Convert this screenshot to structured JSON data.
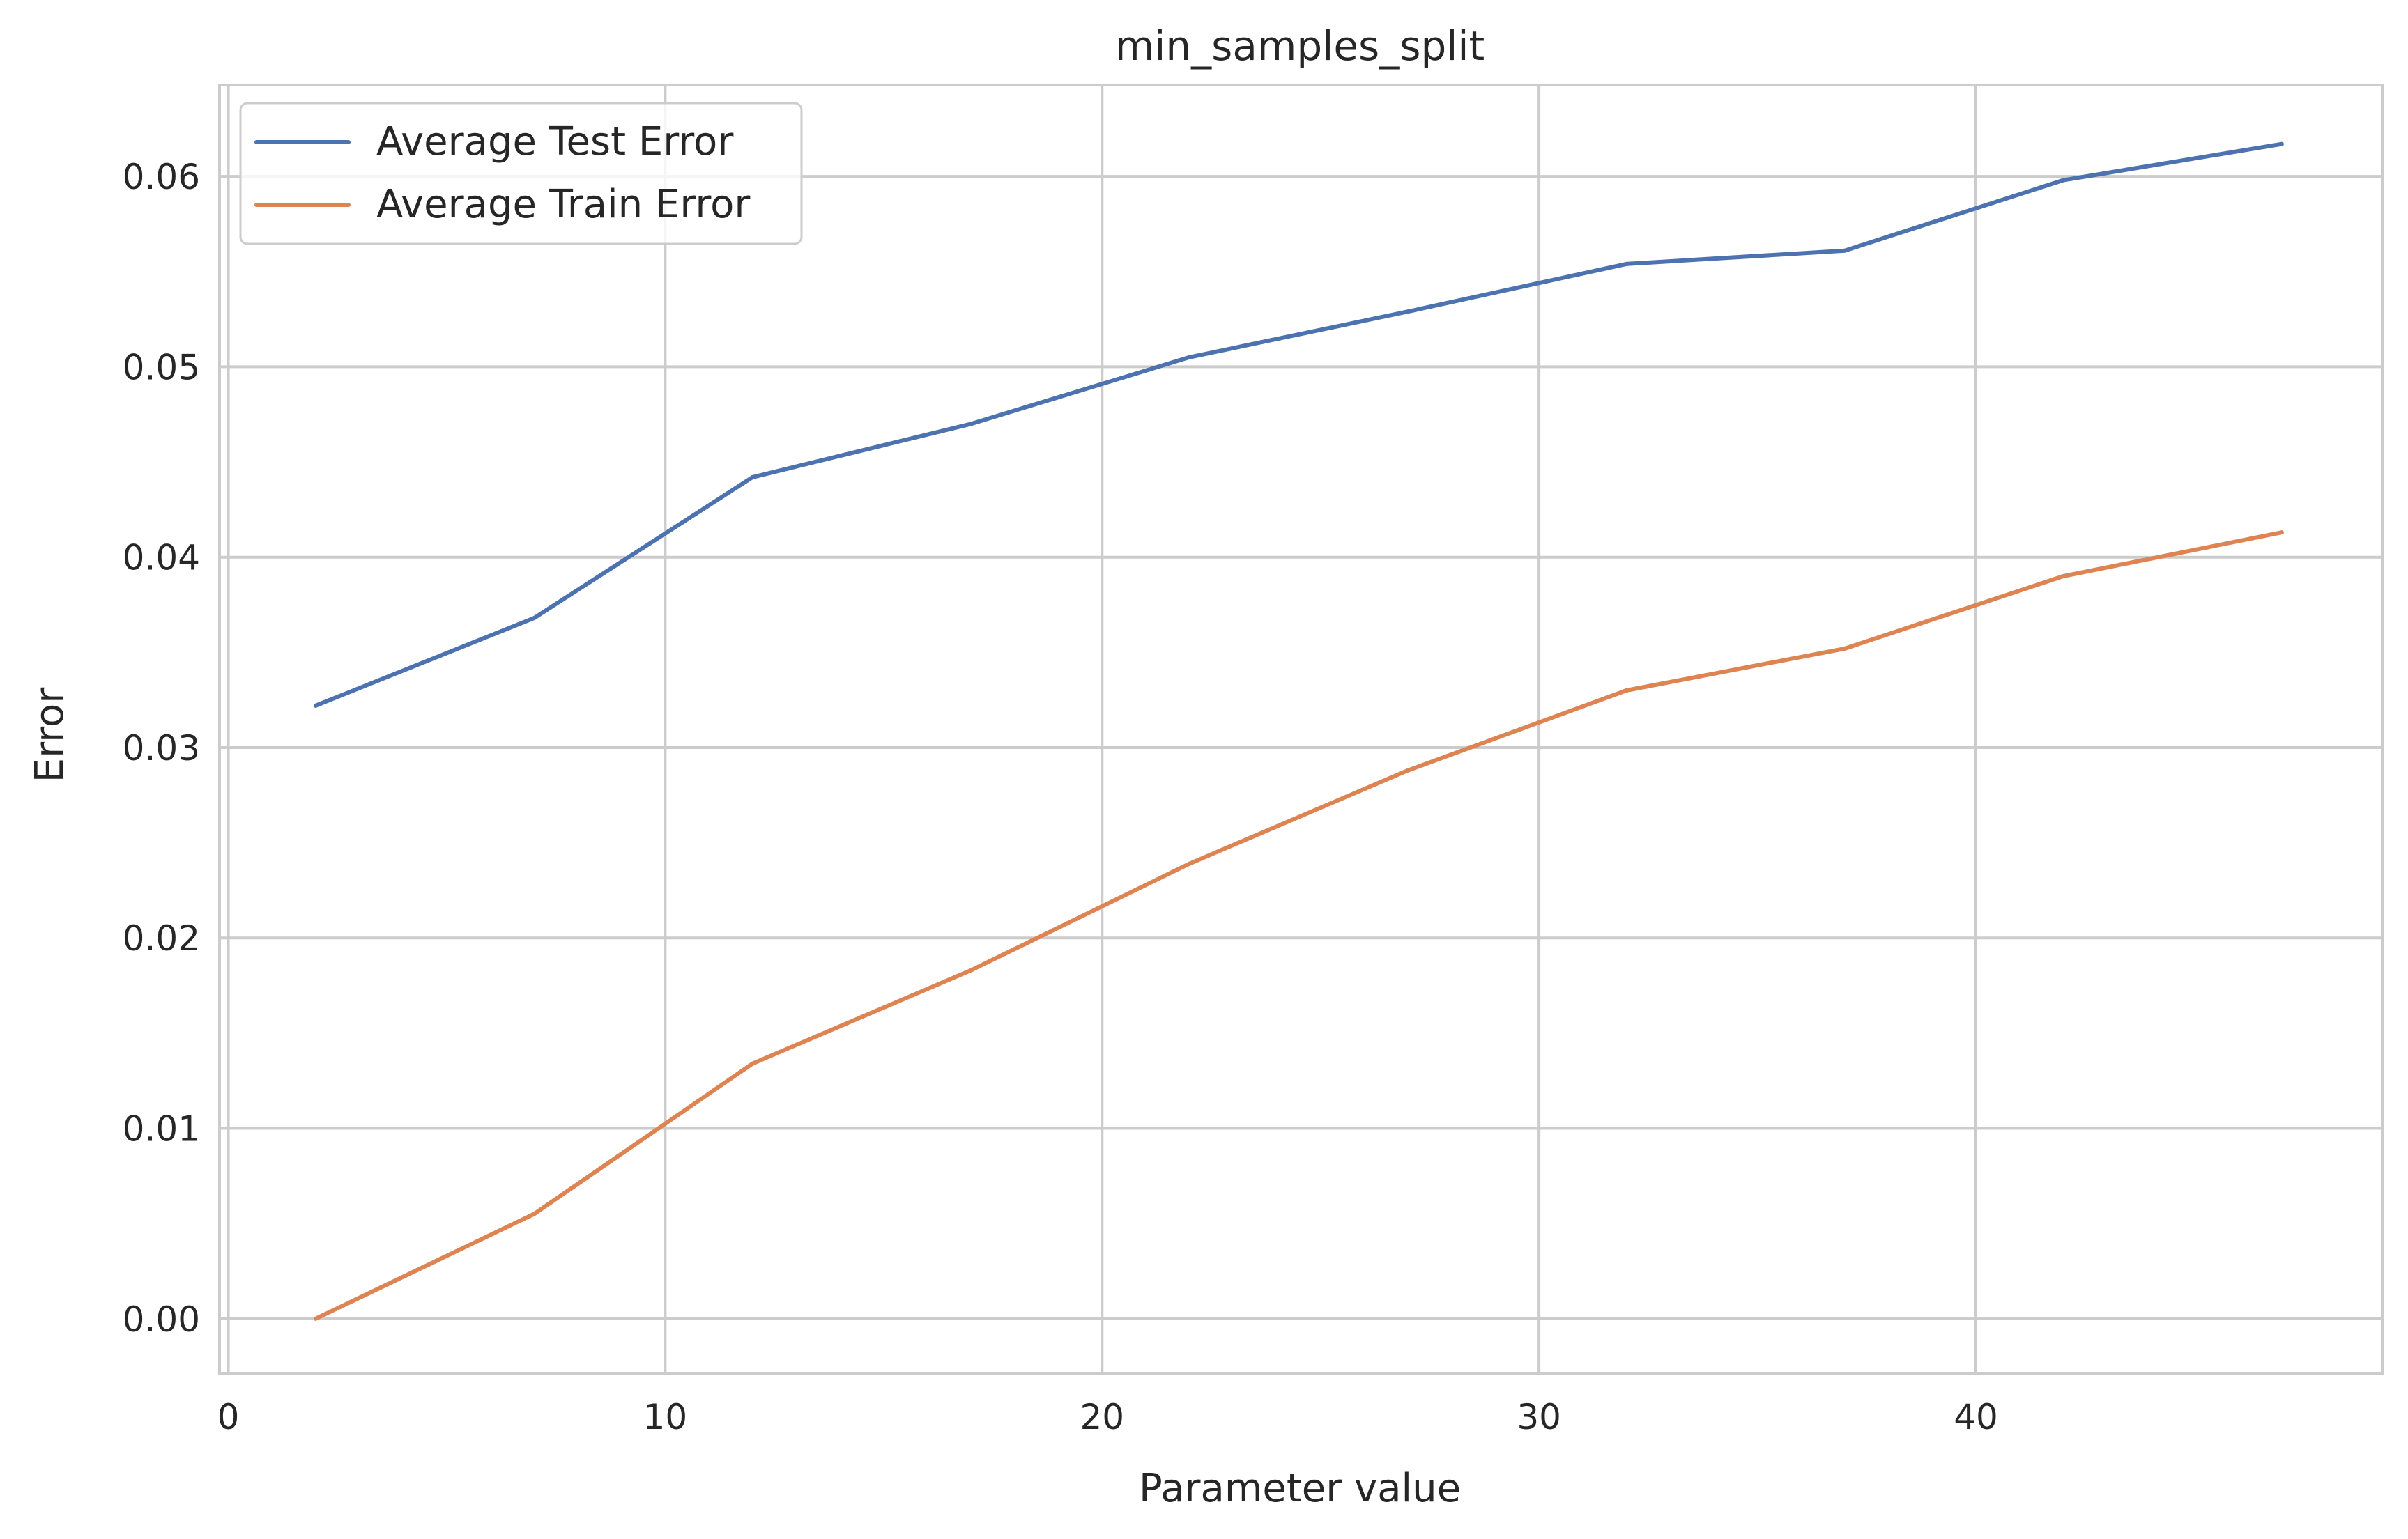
{
  "chart_data": {
    "type": "line",
    "title": "min_samples_split",
    "xlabel": "Parameter value",
    "ylabel": "Error",
    "xlim": [
      -0.2,
      49.3
    ],
    "ylim": [
      -0.0029,
      0.0648
    ],
    "x_ticks": [
      0,
      10,
      20,
      30,
      40
    ],
    "y_ticks": [
      0.0,
      0.01,
      0.02,
      0.03,
      0.04,
      0.05,
      0.06
    ],
    "x_tick_labels": [
      "0",
      "10",
      "20",
      "30",
      "40"
    ],
    "y_tick_labels": [
      "0.00",
      "0.01",
      "0.02",
      "0.03",
      "0.04",
      "0.05",
      "0.06"
    ],
    "grid": true,
    "legend_position": "top-left",
    "x": [
      2,
      7,
      12,
      17,
      22,
      27,
      32,
      37,
      42,
      47
    ],
    "series": [
      {
        "name": "Average Test Error",
        "color": "#4c72b0",
        "values": [
          0.0322,
          0.0368,
          0.0442,
          0.047,
          0.0505,
          0.0529,
          0.0554,
          0.0561,
          0.0598,
          0.0617
        ]
      },
      {
        "name": "Average Train Error",
        "color": "#dd8452",
        "values": [
          0.0,
          0.0055,
          0.0134,
          0.0183,
          0.0239,
          0.0288,
          0.033,
          0.0352,
          0.039,
          0.0413
        ]
      }
    ]
  }
}
